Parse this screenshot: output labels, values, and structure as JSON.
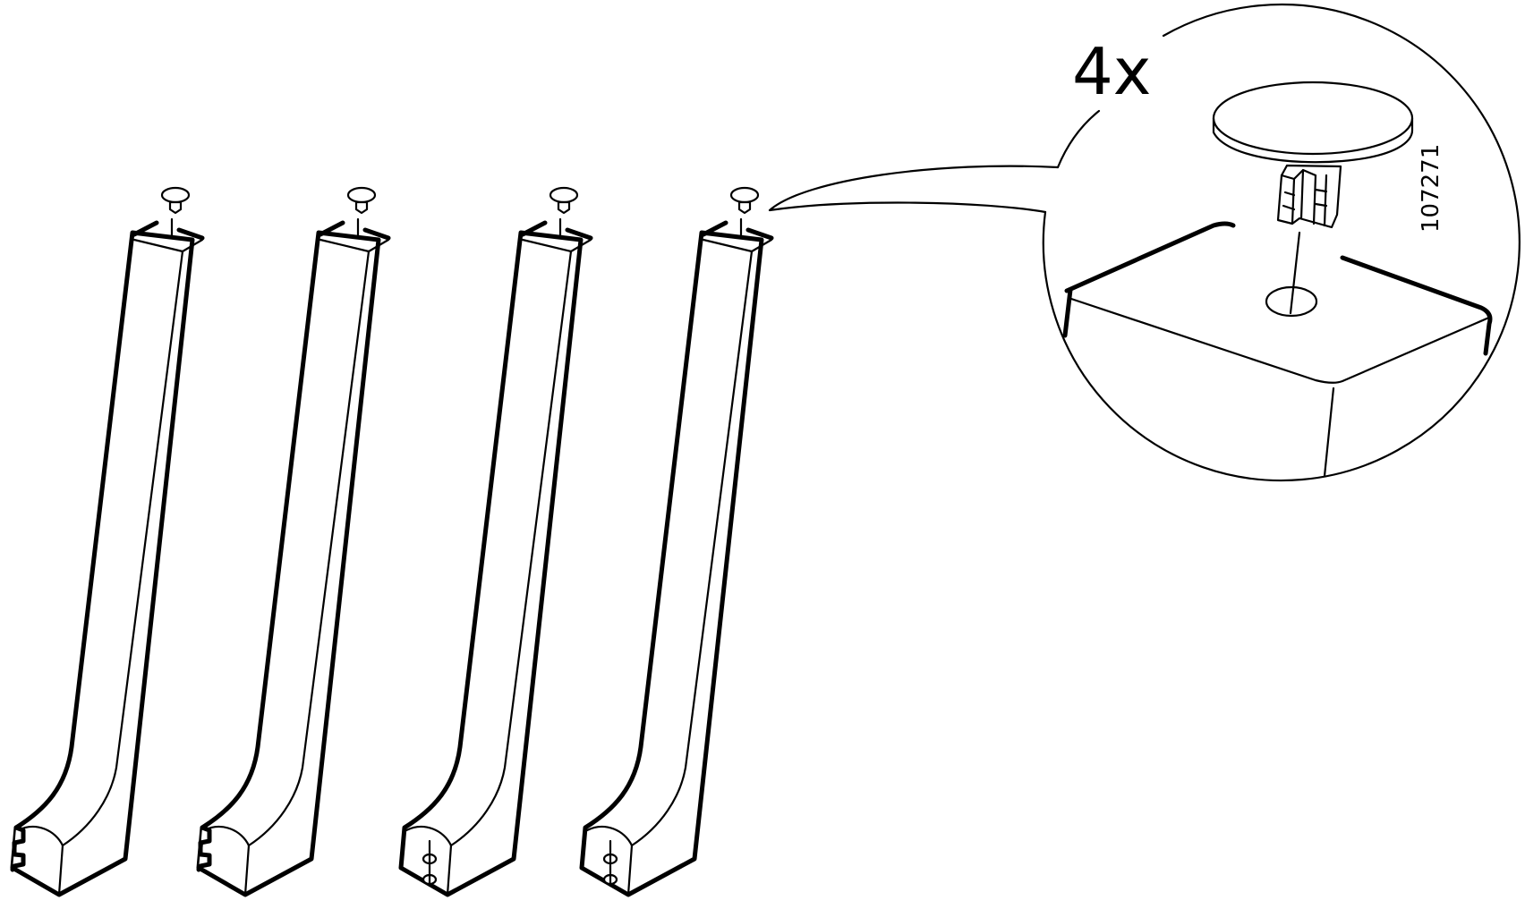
{
  "diagram": {
    "quantity_label": "4x",
    "part_number": "107271",
    "legs": [
      {
        "name": "leg-1",
        "foot_style": "notched"
      },
      {
        "name": "leg-2",
        "foot_style": "notched"
      },
      {
        "name": "leg-3",
        "foot_style": "dowel-holes"
      },
      {
        "name": "leg-4",
        "foot_style": "dowel-holes"
      }
    ],
    "part": "plastic-cap",
    "colors": {
      "ink": "#000000",
      "paper": "#ffffff"
    }
  }
}
